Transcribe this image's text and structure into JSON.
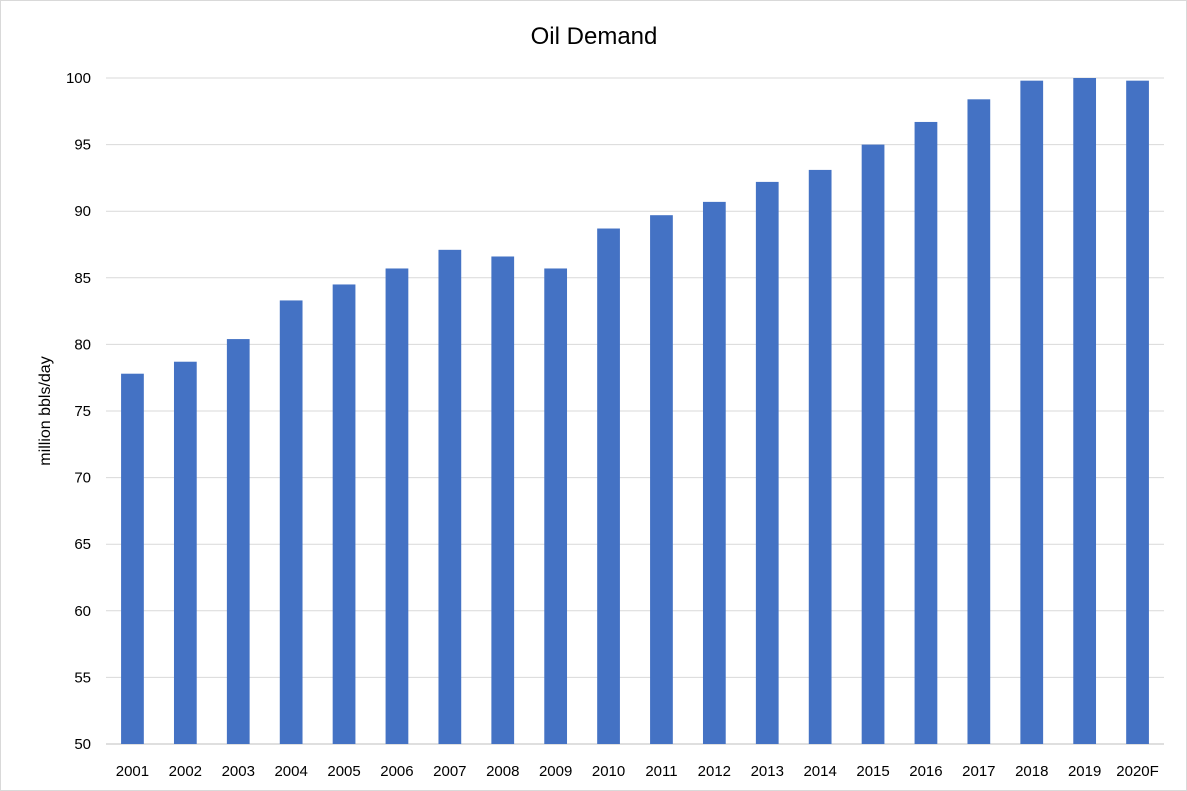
{
  "chart_data": {
    "type": "bar",
    "title": "Oil Demand",
    "xlabel": "",
    "ylabel": "million bbls/day",
    "ylim": [
      50,
      100
    ],
    "yticks": [
      50,
      55,
      60,
      65,
      70,
      75,
      80,
      85,
      90,
      95,
      100
    ],
    "grid": true,
    "bar_color": "#4472C4",
    "categories": [
      "2001",
      "2002",
      "2003",
      "2004",
      "2005",
      "2006",
      "2007",
      "2008",
      "2009",
      "2010",
      "2011",
      "2012",
      "2013",
      "2014",
      "2015",
      "2016",
      "2017",
      "2018",
      "2019",
      "2020F"
    ],
    "values": [
      77.8,
      78.7,
      80.4,
      83.3,
      84.5,
      85.7,
      87.1,
      86.6,
      85.7,
      88.7,
      89.7,
      90.7,
      92.2,
      93.1,
      95.0,
      96.7,
      98.4,
      99.8,
      100.0,
      99.8
    ]
  }
}
